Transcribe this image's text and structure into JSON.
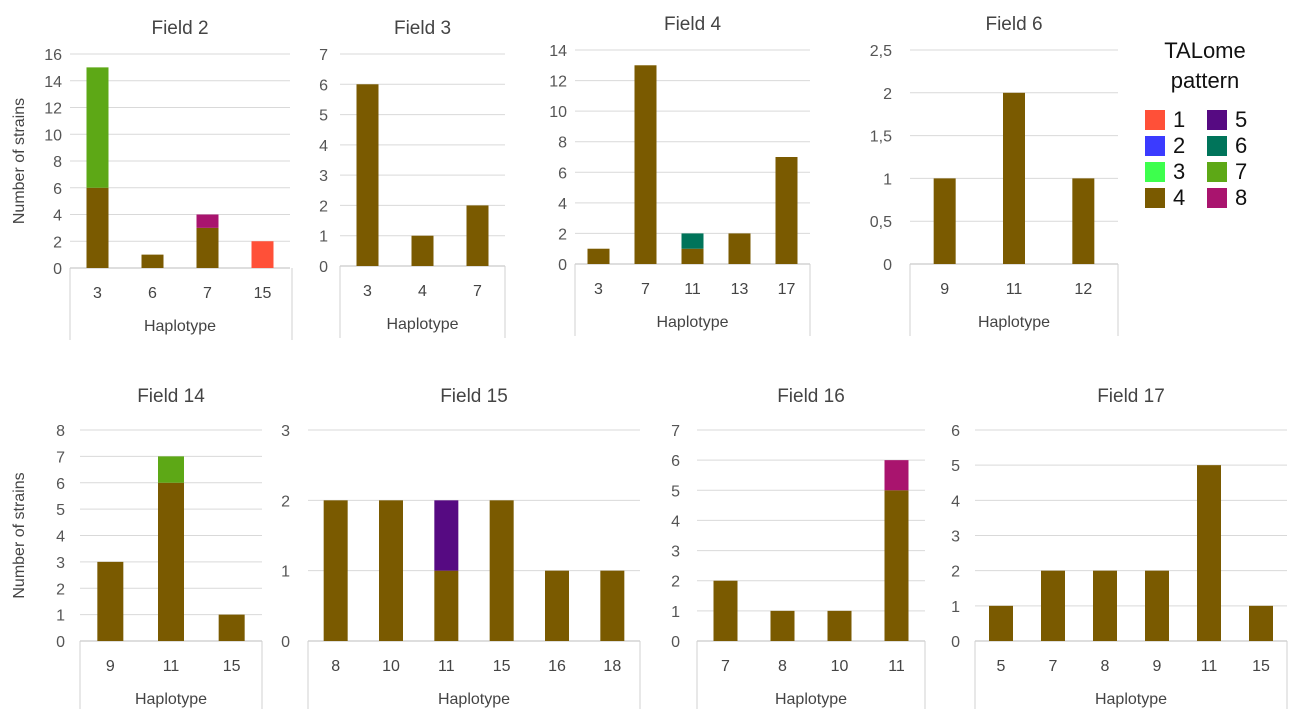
{
  "chart_data": [
    {
      "type": "bar",
      "stacked": true,
      "title": "Field 2",
      "xlabel": "Haplotype",
      "ylabel": "Number of strains",
      "ylim": [
        0,
        16
      ],
      "yticks": [
        "0",
        "2",
        "4",
        "6",
        "8",
        "10",
        "12",
        "14",
        "16"
      ],
      "categories": [
        "3",
        "6",
        "7",
        "15"
      ],
      "series": [
        {
          "pattern": "4",
          "values": [
            6,
            1,
            3,
            0
          ]
        },
        {
          "pattern": "7",
          "values": [
            9,
            0,
            0,
            0
          ]
        },
        {
          "pattern": "8",
          "values": [
            0,
            0,
            1,
            0
          ]
        },
        {
          "pattern": "1",
          "values": [
            0,
            0,
            0,
            2
          ]
        }
      ]
    },
    {
      "type": "bar",
      "stacked": true,
      "title": "Field 3",
      "xlabel": "Haplotype",
      "ylabel": "",
      "ylim": [
        0,
        7
      ],
      "yticks": [
        "0",
        "1",
        "2",
        "3",
        "4",
        "5",
        "6",
        "7"
      ],
      "categories": [
        "3",
        "4",
        "7"
      ],
      "series": [
        {
          "pattern": "4",
          "values": [
            6,
            1,
            2
          ]
        }
      ]
    },
    {
      "type": "bar",
      "stacked": true,
      "title": "Field 4",
      "xlabel": "Haplotype",
      "ylabel": "",
      "ylim": [
        0,
        14
      ],
      "yticks": [
        "0",
        "2",
        "4",
        "6",
        "8",
        "10",
        "12",
        "14"
      ],
      "categories": [
        "3",
        "7",
        "11",
        "13",
        "17"
      ],
      "series": [
        {
          "pattern": "4",
          "values": [
            1,
            13,
            1,
            2,
            7
          ]
        },
        {
          "pattern": "6",
          "values": [
            0,
            0,
            1,
            0,
            0
          ]
        }
      ]
    },
    {
      "type": "bar",
      "stacked": true,
      "title": "Field 6",
      "xlabel": "Haplotype",
      "ylabel": "",
      "ylim": [
        0,
        2.5
      ],
      "yticks": [
        "0",
        "0,5",
        "1",
        "1,5",
        "2",
        "2,5"
      ],
      "categories": [
        "9",
        "11",
        "12"
      ],
      "series": [
        {
          "pattern": "4",
          "values": [
            1,
            2,
            1
          ]
        }
      ]
    },
    {
      "type": "bar",
      "stacked": true,
      "title": "Field 14",
      "xlabel": "Haplotype",
      "ylabel": "Number of strains",
      "ylim": [
        0,
        8
      ],
      "yticks": [
        "0",
        "1",
        "2",
        "3",
        "4",
        "5",
        "6",
        "7",
        "8"
      ],
      "categories": [
        "9",
        "11",
        "15"
      ],
      "series": [
        {
          "pattern": "4",
          "values": [
            3,
            6,
            1
          ]
        },
        {
          "pattern": "7",
          "values": [
            0,
            1,
            0
          ]
        }
      ]
    },
    {
      "type": "bar",
      "stacked": true,
      "title": "Field 15",
      "xlabel": "Haplotype",
      "ylabel": "",
      "ylim": [
        0,
        3
      ],
      "yticks": [
        "0",
        "1",
        "2",
        "3"
      ],
      "categories": [
        "8",
        "10",
        "11",
        "15",
        "16",
        "18"
      ],
      "series": [
        {
          "pattern": "4",
          "values": [
            2,
            2,
            1,
            2,
            1,
            1
          ]
        },
        {
          "pattern": "5",
          "values": [
            0,
            0,
            1,
            0,
            0,
            0
          ]
        }
      ]
    },
    {
      "type": "bar",
      "stacked": true,
      "title": "Field 16",
      "xlabel": "Haplotype",
      "ylabel": "",
      "ylim": [
        0,
        7
      ],
      "yticks": [
        "0",
        "1",
        "2",
        "3",
        "4",
        "5",
        "6",
        "7"
      ],
      "categories": [
        "7",
        "8",
        "10",
        "11"
      ],
      "series": [
        {
          "pattern": "4",
          "values": [
            2,
            1,
            1,
            5
          ]
        },
        {
          "pattern": "8",
          "values": [
            0,
            0,
            0,
            1
          ]
        }
      ]
    },
    {
      "type": "bar",
      "stacked": true,
      "title": "Field 17",
      "xlabel": "Haplotype",
      "ylabel": "",
      "ylim": [
        0,
        6
      ],
      "yticks": [
        "0",
        "1",
        "2",
        "3",
        "4",
        "5",
        "6"
      ],
      "categories": [
        "5",
        "7",
        "8",
        "9",
        "11",
        "15"
      ],
      "series": [
        {
          "pattern": "4",
          "values": [
            1,
            2,
            2,
            2,
            5,
            1
          ]
        }
      ]
    }
  ],
  "legend": {
    "title_line1": "TALome",
    "title_line2": "pattern",
    "items": [
      {
        "label": "1",
        "color": "#ff5038"
      },
      {
        "label": "5",
        "color": "#560a82"
      },
      {
        "label": "2",
        "color": "#3b3bff"
      },
      {
        "label": "6",
        "color": "#00745a"
      },
      {
        "label": "3",
        "color": "#3dff4d"
      },
      {
        "label": "7",
        "color": "#5da816"
      },
      {
        "label": "4",
        "color": "#7a5a00"
      },
      {
        "label": "8",
        "color": "#a9146e"
      }
    ]
  },
  "pattern_colors": {
    "1": "#ff5038",
    "2": "#3b3bff",
    "3": "#3dff4d",
    "4": "#7a5a00",
    "5": "#560a82",
    "6": "#00745a",
    "7": "#5da816",
    "8": "#a9146e"
  }
}
